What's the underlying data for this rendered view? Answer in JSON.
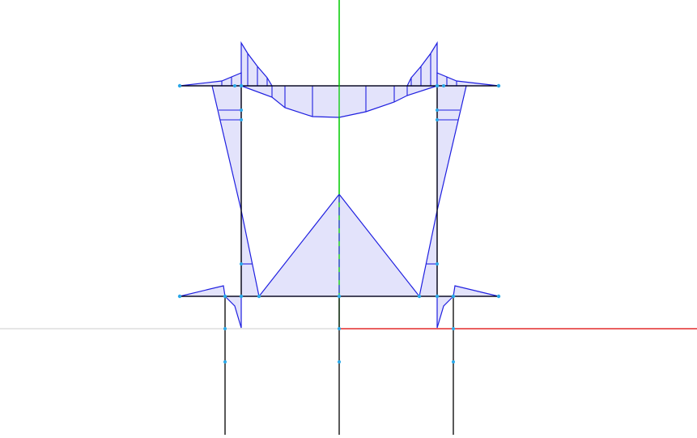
{
  "view": {
    "background": "#ffffff",
    "colors": {
      "axis_x": "#dd0000",
      "axis_y": "#00cc00",
      "axis_ground": "#cccccc",
      "member": "#000000",
      "diagram_stroke": "#1f1fe0",
      "diagram_fill": "#e3e3fb",
      "node": "#29a8e8"
    },
    "icons": [
      "x-axis-line",
      "y-axis-line",
      "node-marker"
    ]
  }
}
